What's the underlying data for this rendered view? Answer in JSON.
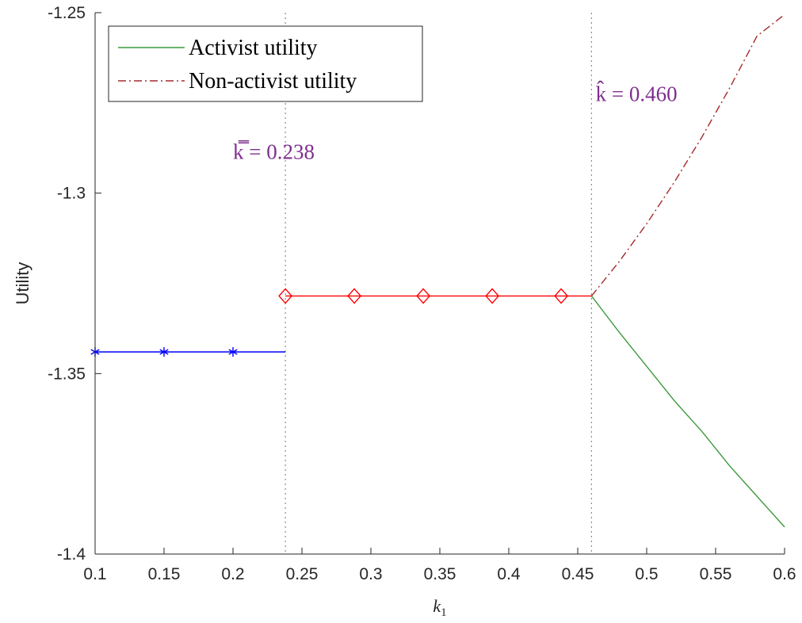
{
  "chart_data": {
    "type": "line",
    "title": "",
    "xlabel": "k1",
    "ylabel": "Utility",
    "xlim": [
      0.1,
      0.6
    ],
    "ylim": [
      -1.4,
      -1.25
    ],
    "x_ticks": [
      "0.1",
      "0.15",
      "0.2",
      "0.25",
      "0.3",
      "0.35",
      "0.4",
      "0.45",
      "0.5",
      "0.55",
      "0.6"
    ],
    "y_ticks": [
      "-1.25",
      "-1.3",
      "-1.35",
      "-1.4"
    ],
    "grid": false,
    "legend": {
      "position": "top-left",
      "entries": [
        "Activist utility",
        "Non-activist utility"
      ]
    },
    "series": [
      {
        "name": "Activist utility",
        "style": "solid",
        "color": "#3c9a3c",
        "x": [
          0.46,
          0.48,
          0.5,
          0.52,
          0.54,
          0.56,
          0.58,
          0.6
        ],
        "y": [
          -1.3285,
          -1.3385,
          -1.348,
          -1.3575,
          -1.366,
          -1.3755,
          -1.384,
          -1.3925
        ]
      },
      {
        "name": "Non-activist utility",
        "style": "dash-dot",
        "color": "#a52a2a",
        "x": [
          0.46,
          0.48,
          0.5,
          0.52,
          0.54,
          0.56,
          0.58,
          0.6
        ],
        "y": [
          -1.3285,
          -1.319,
          -1.3085,
          -1.297,
          -1.2845,
          -1.271,
          -1.2565,
          -1.2505
        ]
      },
      {
        "style": "solid",
        "marker": "asterisk",
        "color": "#0000ff",
        "x": [
          0.1,
          0.15,
          0.2,
          0.238
        ],
        "y": [
          -1.344,
          -1.344,
          -1.344,
          -1.344
        ],
        "marker_x": [
          0.1,
          0.15,
          0.2
        ]
      },
      {
        "style": "solid",
        "marker": "diamond",
        "color": "#ff0000",
        "x": [
          0.238,
          0.288,
          0.338,
          0.388,
          0.438,
          0.46
        ],
        "y": [
          -1.3285,
          -1.3285,
          -1.3285,
          -1.3285,
          -1.3285,
          -1.3285
        ],
        "marker_x": [
          0.238,
          0.288,
          0.338,
          0.388,
          0.438
        ]
      }
    ],
    "vlines": [
      {
        "x": 0.238,
        "label": "k̿ = 0.238",
        "label_pos": [
          0.2,
          -1.2905
        ],
        "style": "dotted",
        "color": "#8c8c8c"
      },
      {
        "x": 0.46,
        "label": "k̂ = 0.460",
        "label_pos": [
          0.463,
          -1.2745
        ],
        "style": "dotted",
        "color": "#8c8c8c"
      }
    ],
    "annotation_color": "#7e2f8e"
  }
}
